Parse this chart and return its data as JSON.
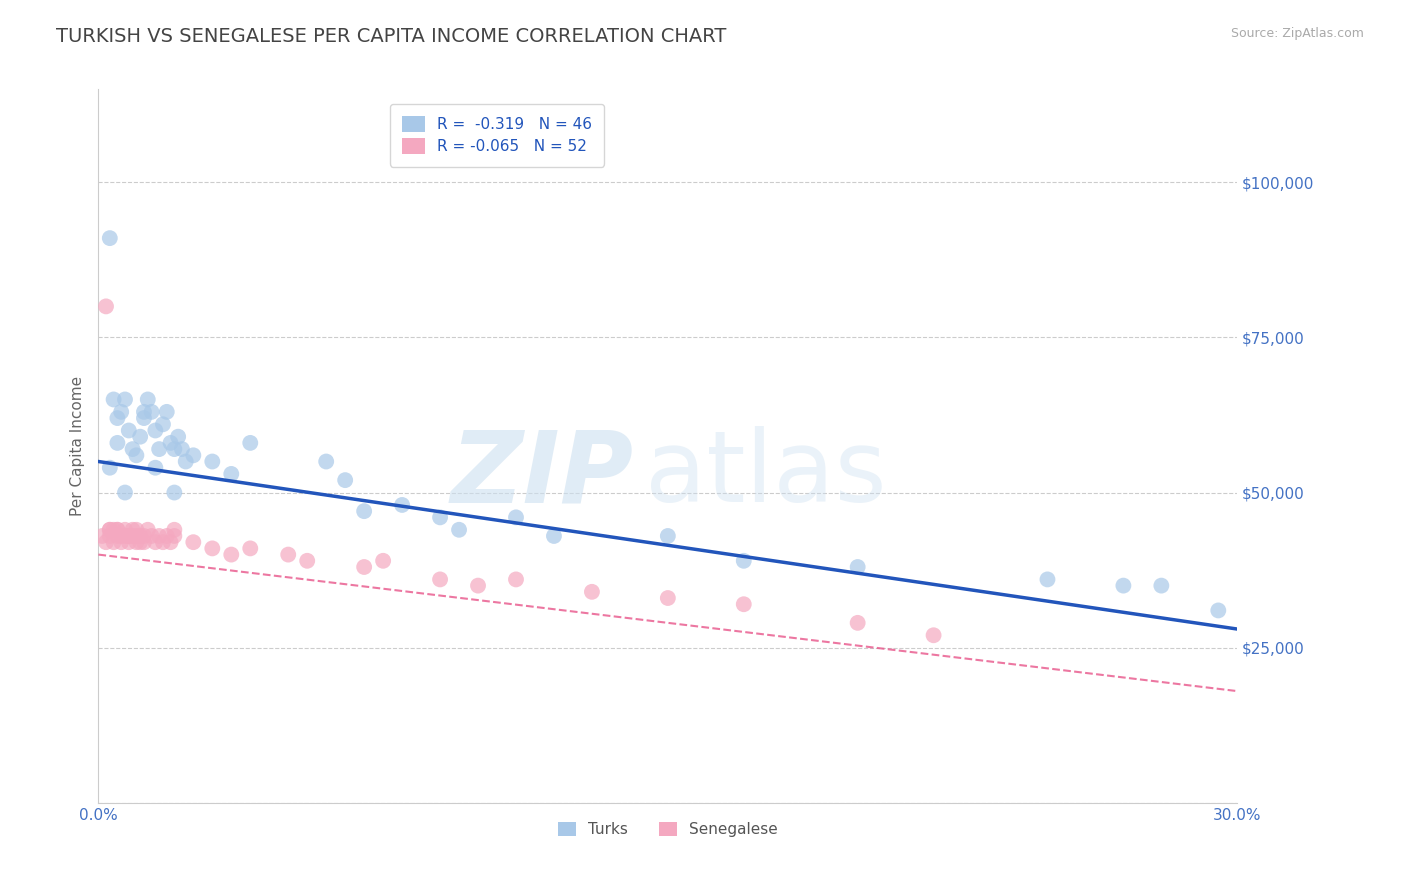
{
  "title": "TURKISH VS SENEGALESE PER CAPITA INCOME CORRELATION CHART",
  "source_text": "Source: ZipAtlas.com",
  "ylabel": "Per Capita Income",
  "xlim": [
    0.0,
    0.3
  ],
  "ylim": [
    0,
    115000
  ],
  "yticks": [
    0,
    25000,
    50000,
    75000,
    100000
  ],
  "ytick_labels": [
    "",
    "$25,000",
    "$50,000",
    "$75,000",
    "$100,000"
  ],
  "xticks": [
    0.0,
    0.3
  ],
  "xtick_labels": [
    "0.0%",
    "30.0%"
  ],
  "title_color": "#444444",
  "title_fontsize": 14,
  "axis_label_color": "#666666",
  "tick_color": "#4472c4",
  "background_color": "#ffffff",
  "grid_color": "#cccccc",
  "turks_color": "#a8c8e8",
  "senegalese_color": "#f4a8c0",
  "turks_line_color": "#2255bb",
  "senegalese_line_color": "#e8558a",
  "legend_turks_r": "-0.319",
  "legend_turks_n": "46",
  "legend_senegalese_r": "-0.065",
  "legend_senegalese_n": "52",
  "turks_x": [
    0.003,
    0.004,
    0.005,
    0.006,
    0.007,
    0.008,
    0.009,
    0.01,
    0.011,
    0.012,
    0.013,
    0.014,
    0.015,
    0.016,
    0.017,
    0.018,
    0.019,
    0.02,
    0.021,
    0.022,
    0.023,
    0.03,
    0.035,
    0.04,
    0.06,
    0.065,
    0.08,
    0.09,
    0.11,
    0.12,
    0.15,
    0.17,
    0.2,
    0.25,
    0.27,
    0.28,
    0.295,
    0.003,
    0.005,
    0.007,
    0.012,
    0.015,
    0.02,
    0.025,
    0.07,
    0.095
  ],
  "turks_y": [
    91000,
    65000,
    62000,
    63000,
    65000,
    60000,
    57000,
    56000,
    59000,
    62000,
    65000,
    63000,
    60000,
    57000,
    61000,
    63000,
    58000,
    57000,
    59000,
    57000,
    55000,
    55000,
    53000,
    58000,
    55000,
    52000,
    48000,
    46000,
    46000,
    43000,
    43000,
    39000,
    38000,
    36000,
    35000,
    35000,
    31000,
    54000,
    58000,
    50000,
    63000,
    54000,
    50000,
    56000,
    47000,
    44000
  ],
  "senegalese_x": [
    0.001,
    0.002,
    0.003,
    0.003,
    0.004,
    0.004,
    0.005,
    0.005,
    0.006,
    0.006,
    0.007,
    0.007,
    0.008,
    0.008,
    0.009,
    0.009,
    0.01,
    0.01,
    0.01,
    0.011,
    0.011,
    0.012,
    0.012,
    0.013,
    0.014,
    0.015,
    0.016,
    0.017,
    0.018,
    0.019,
    0.02,
    0.025,
    0.03,
    0.035,
    0.04,
    0.05,
    0.055,
    0.07,
    0.075,
    0.09,
    0.1,
    0.11,
    0.13,
    0.15,
    0.17,
    0.2,
    0.22,
    0.002,
    0.003,
    0.005,
    0.008,
    0.02
  ],
  "senegalese_y": [
    43000,
    42000,
    44000,
    43000,
    44000,
    42000,
    44000,
    43000,
    43000,
    42000,
    44000,
    43000,
    43000,
    42000,
    44000,
    43000,
    44000,
    43000,
    42000,
    43000,
    42000,
    43000,
    42000,
    44000,
    43000,
    42000,
    43000,
    42000,
    43000,
    42000,
    43000,
    42000,
    41000,
    40000,
    41000,
    40000,
    39000,
    38000,
    39000,
    36000,
    35000,
    36000,
    34000,
    33000,
    32000,
    29000,
    27000,
    80000,
    44000,
    44000,
    43000,
    44000
  ]
}
